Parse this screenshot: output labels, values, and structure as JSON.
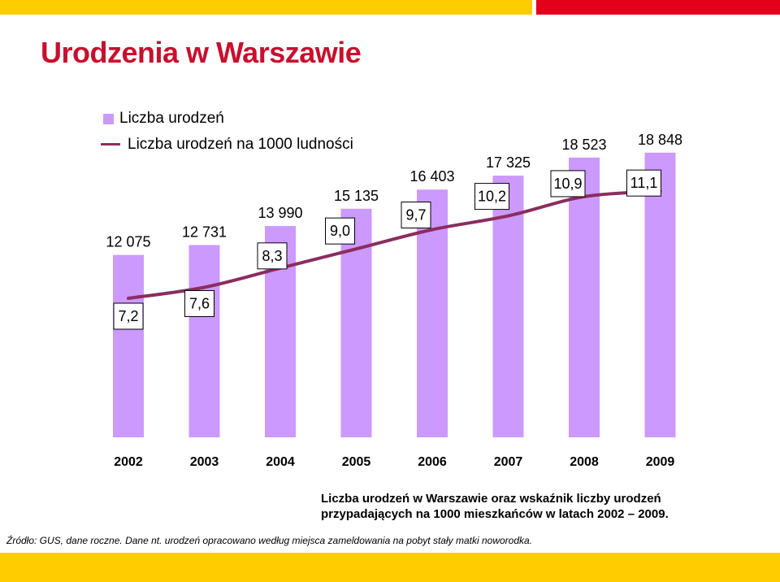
{
  "title": "Urodzenia w Warszawie",
  "colors": {
    "title": "#C8102E",
    "bar": "#CC99FF",
    "line": "#8B2D5E",
    "banner_yellow": "#FFCC00",
    "banner_red": "#E2001A"
  },
  "legend": {
    "bars_label": "Liczba urodzeń",
    "line_label": "Liczba urodzeń na 1000 ludności"
  },
  "chart_data": {
    "type": "bar",
    "categories": [
      "2002",
      "2003",
      "2004",
      "2005",
      "2006",
      "2007",
      "2008",
      "2009"
    ],
    "series": [
      {
        "name": "Liczba urodzeń",
        "type": "bar",
        "values": [
          12075,
          12731,
          13990,
          15135,
          16403,
          17325,
          18523,
          18848
        ],
        "labels": [
          "12 075",
          "12 731",
          "13 990",
          "15 135",
          "16 403",
          "17 325",
          "18 523",
          "18 848"
        ]
      },
      {
        "name": "Liczba urodzeń na 1000 ludności",
        "type": "line",
        "values": [
          7.2,
          7.6,
          8.3,
          9.0,
          9.7,
          10.2,
          10.9,
          11.1
        ],
        "labels": [
          "7,2",
          "7,6",
          "8,3",
          "9,0",
          "9,7",
          "10,2",
          "10,9",
          "11,1"
        ]
      }
    ],
    "legend_position": "top-left",
    "grid": false
  },
  "caption": {
    "line1": "Liczba urodzeń w Warszawie oraz wskaźnik liczby urodzeń",
    "line2": "przypadających na 1000 mieszkańców w latach 2002 – 2009."
  },
  "source": "Źródło: GUS, dane roczne. Dane nt. urodzeń opracowano według miejsca zameldowania na pobyt stały matki noworodka."
}
